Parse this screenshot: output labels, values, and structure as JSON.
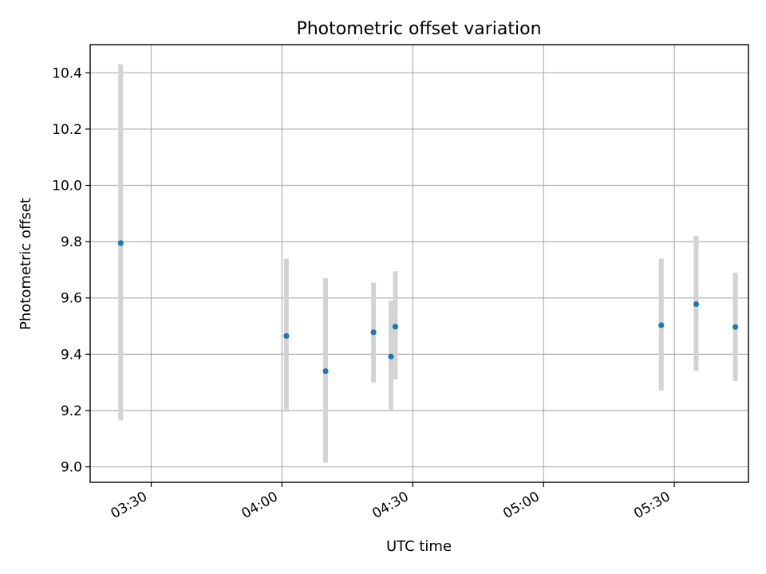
{
  "chart_data": {
    "type": "scatter",
    "title": "Photometric offset variation",
    "xlabel": "UTC time",
    "ylabel": "Photometric offset",
    "x_ticks": [
      "03:30",
      "04:00",
      "04:30",
      "05:00",
      "05:30"
    ],
    "y_ticks": [
      "9.0",
      "9.2",
      "9.4",
      "9.6",
      "9.8",
      "10.0",
      "10.2",
      "10.4"
    ],
    "xlim": [
      "03:16",
      "05:47"
    ],
    "ylim": [
      8.945,
      10.5
    ],
    "grid": true,
    "error_bar_color": "#d3d3d3",
    "marker_color": "#1f77b4",
    "points": [
      {
        "x": "03:23",
        "y": 9.795,
        "ylow": 9.165,
        "yhigh": 10.43
      },
      {
        "x": "04:01",
        "y": 9.465,
        "ylow": 9.195,
        "yhigh": 9.74
      },
      {
        "x": "04:10",
        "y": 9.34,
        "ylow": 9.015,
        "yhigh": 9.67
      },
      {
        "x": "04:21",
        "y": 9.478,
        "ylow": 9.3,
        "yhigh": 9.655
      },
      {
        "x": "04:25",
        "y": 9.392,
        "ylow": 9.2,
        "yhigh": 9.59
      },
      {
        "x": "04:26",
        "y": 9.498,
        "ylow": 9.31,
        "yhigh": 9.695
      },
      {
        "x": "05:27",
        "y": 9.503,
        "ylow": 9.27,
        "yhigh": 9.74
      },
      {
        "x": "05:35",
        "y": 9.578,
        "ylow": 9.34,
        "yhigh": 9.82
      },
      {
        "x": "05:44",
        "y": 9.497,
        "ylow": 9.305,
        "yhigh": 9.69
      }
    ]
  }
}
